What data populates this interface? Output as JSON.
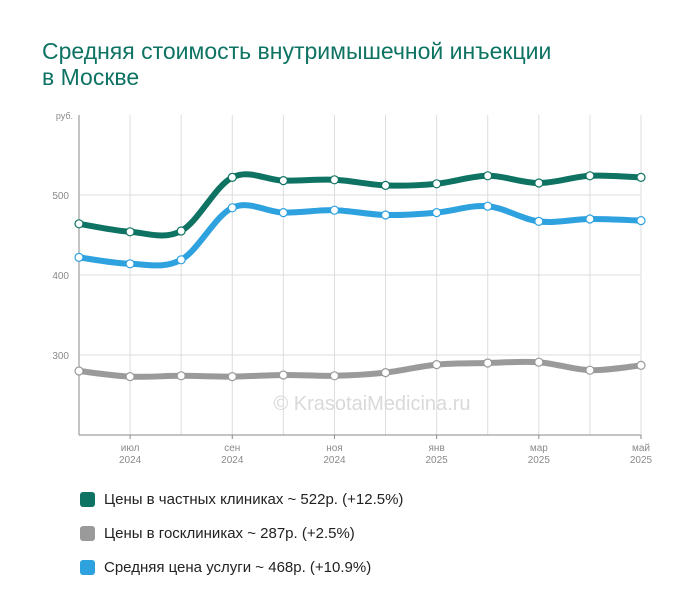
{
  "title_lines": [
    "Средняя стоимость внутримышечной инъекции",
    "в Москве"
  ],
  "watermark": "© KrasotaiMedicina.ru",
  "chart_data": {
    "type": "line",
    "yunit": "руб.",
    "ylim": [
      200,
      600
    ],
    "yticks": [
      300,
      400,
      500
    ],
    "x": [
      0,
      1,
      2,
      3,
      4,
      5,
      6,
      7,
      8,
      9,
      10,
      11
    ],
    "xtick_labels": [
      {
        "i": 1,
        "line1": "июл",
        "line2": "2024"
      },
      {
        "i": 3,
        "line1": "сен",
        "line2": "2024"
      },
      {
        "i": 5,
        "line1": "ноя",
        "line2": "2024"
      },
      {
        "i": 7,
        "line1": "янв",
        "line2": "2025"
      },
      {
        "i": 9,
        "line1": "мар",
        "line2": "2025"
      },
      {
        "i": 11,
        "line1": "май",
        "line2": "2025"
      }
    ],
    "grid": true,
    "legend_position": "bottom",
    "series": [
      {
        "name": "Цены в частных клиниках ~ 522р. (+12.5%)",
        "color": "#0e7363",
        "values": [
          464,
          454,
          455,
          522,
          518,
          519,
          512,
          514,
          524,
          515,
          524,
          522
        ]
      },
      {
        "name": "Цены в госклиниках ~ 287р. (+2.5%)",
        "color": "#9a9a9a",
        "values": [
          280,
          273,
          274,
          273,
          275,
          274,
          278,
          288,
          290,
          291,
          281,
          287
        ]
      },
      {
        "name": "Средняя цена услуги ~ 468р. (+10.9%)",
        "color": "#2ea1df",
        "values": [
          422,
          414,
          419,
          484,
          478,
          481,
          475,
          478,
          486,
          467,
          470,
          468
        ]
      }
    ]
  }
}
